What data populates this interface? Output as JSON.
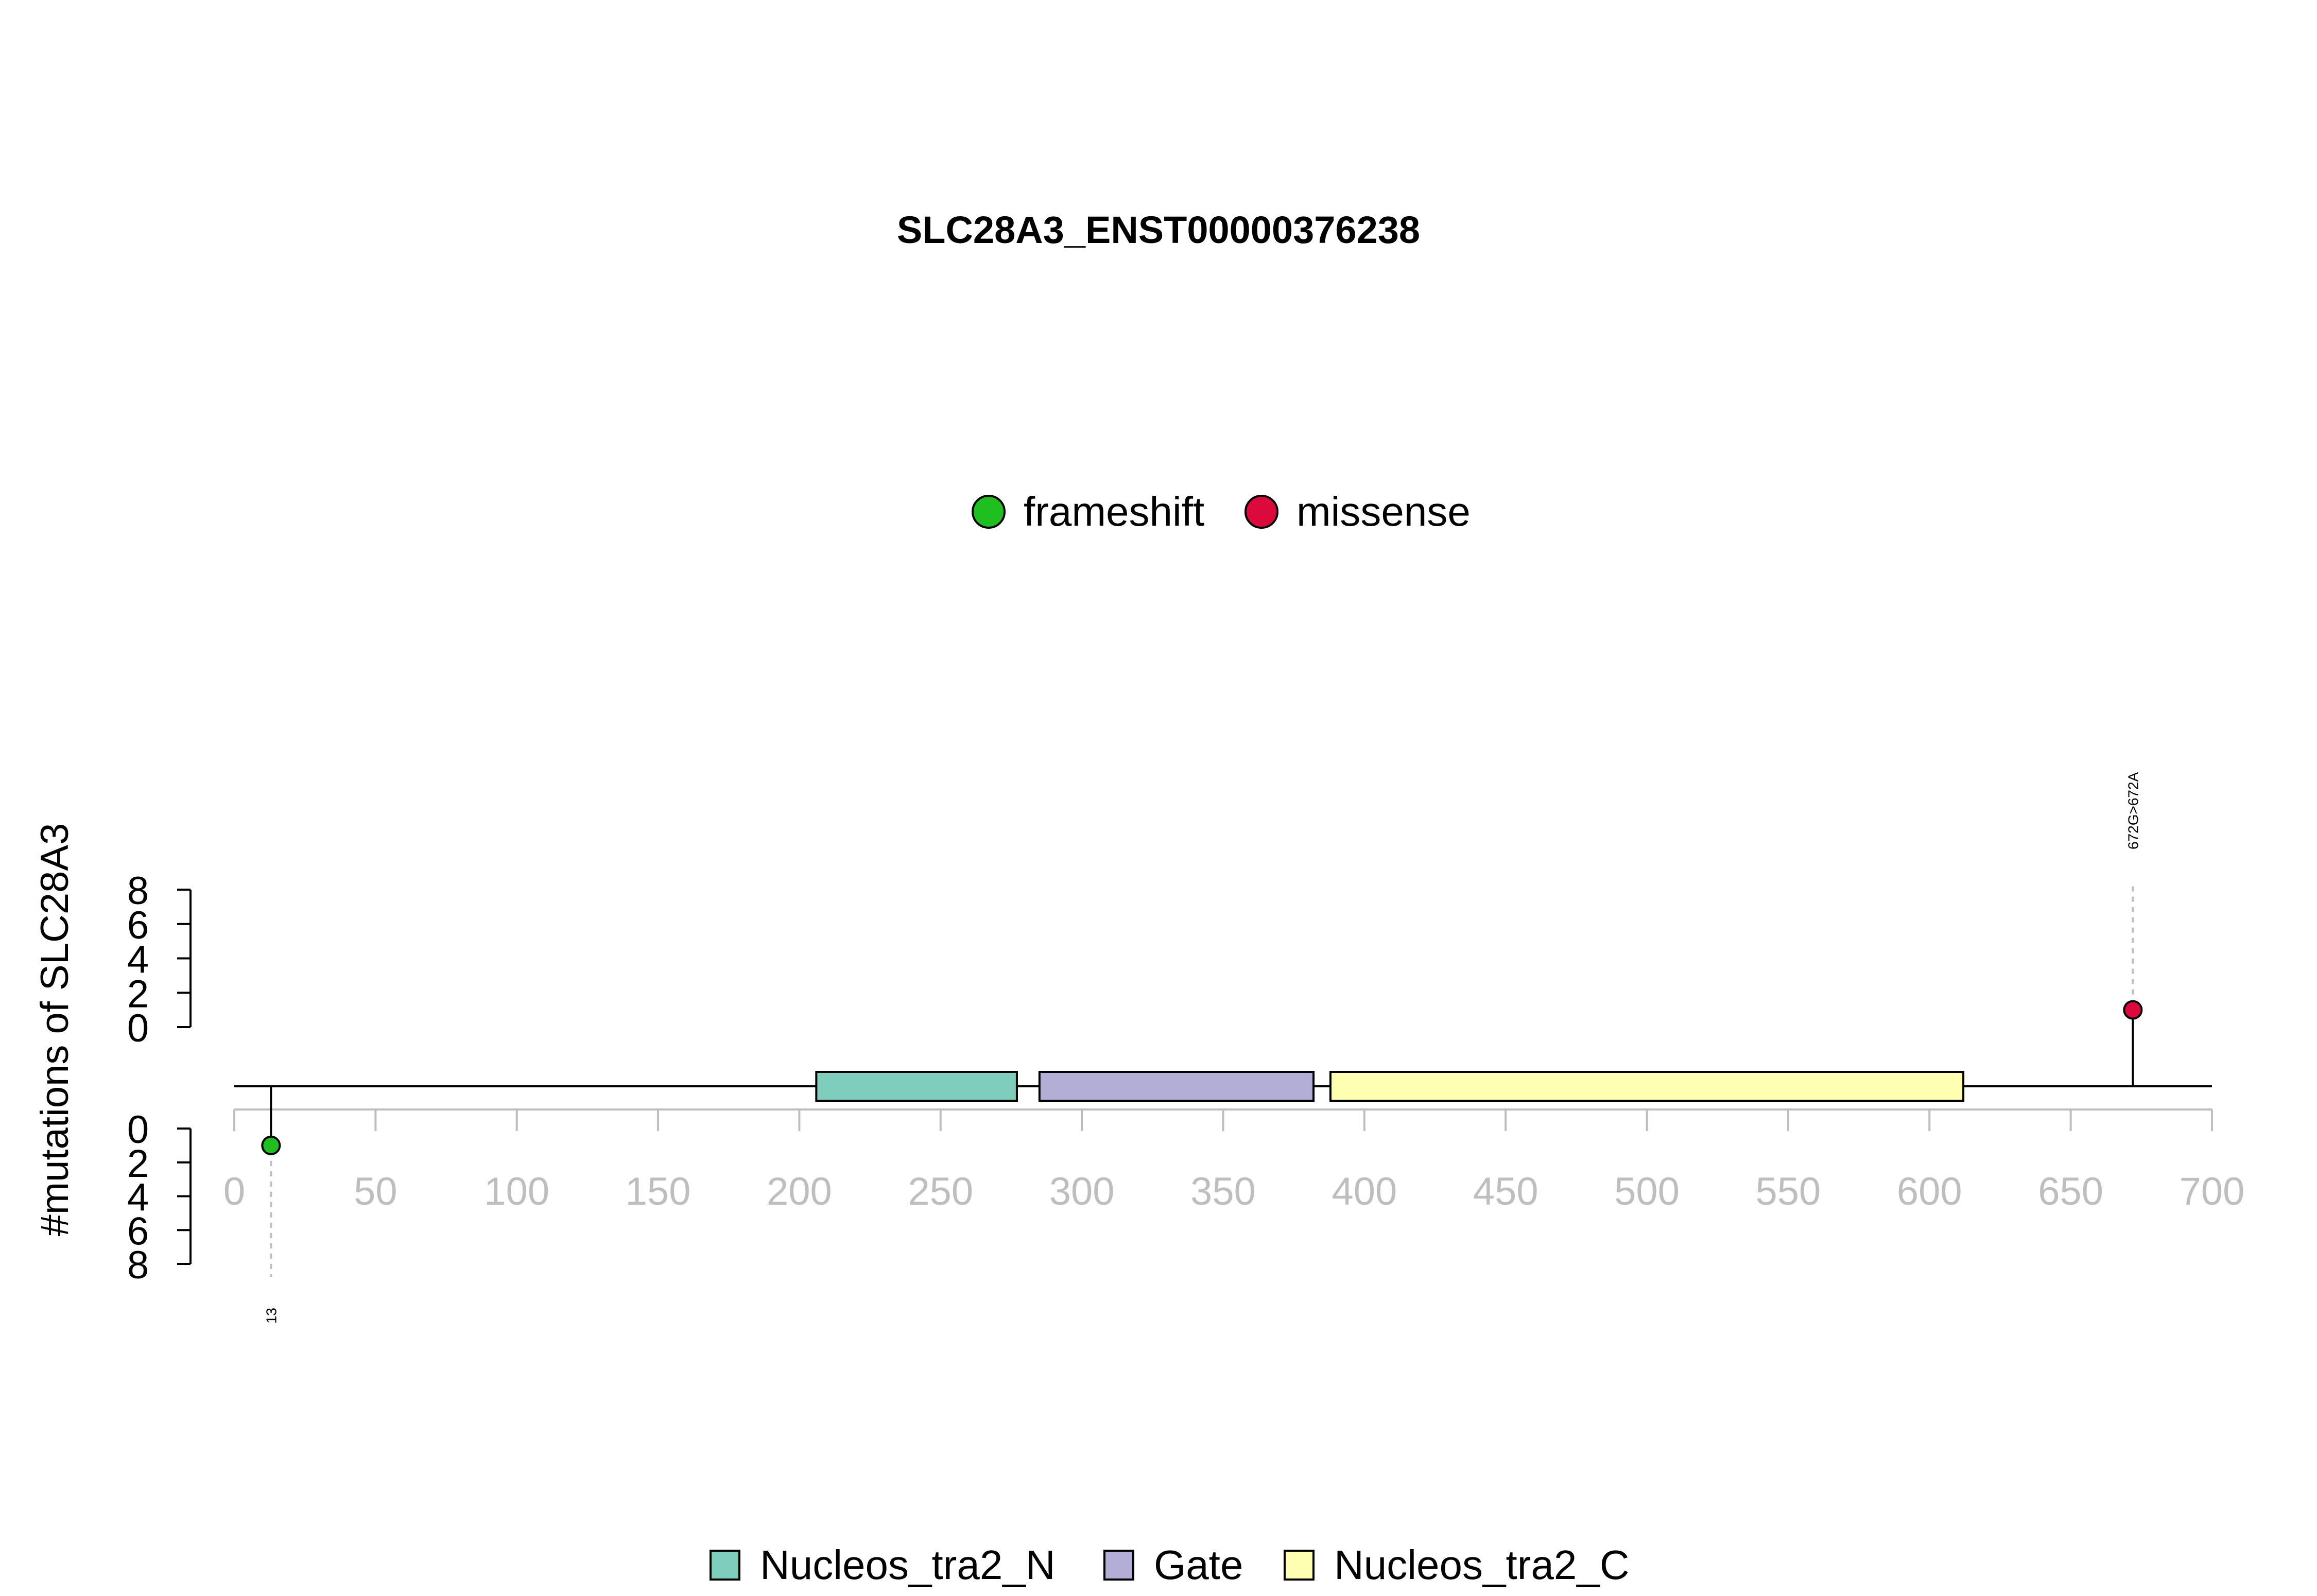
{
  "chart_data": {
    "type": "lollipop",
    "title": "SLC28A3_ENST00000376238",
    "ylabel": "#mutations of SLC28A3",
    "xlim": [
      0,
      700
    ],
    "x_ticks": [
      0,
      50,
      100,
      150,
      200,
      250,
      300,
      350,
      400,
      450,
      500,
      550,
      600,
      650,
      700
    ],
    "y_ticks": [
      0,
      2,
      4,
      6,
      8
    ],
    "ylim": [
      0,
      8
    ],
    "protein_length": 700,
    "mutation_legend": [
      {
        "name": "frameshift",
        "color": "#1fbf1f"
      },
      {
        "name": "missense",
        "color": "#dc0a3c"
      }
    ],
    "domain_legend": [
      {
        "name": "Nucleos_tra2_N",
        "color": "#7fcdbb"
      },
      {
        "name": "Gate",
        "color": "#b3aed6"
      },
      {
        "name": "Nucleos_tra2_C",
        "color": "#ffffb2"
      }
    ],
    "domains": [
      {
        "name": "Nucleos_tra2_N",
        "start": 206,
        "end": 277,
        "color": "#7fcdbb"
      },
      {
        "name": "Gate",
        "start": 285,
        "end": 382,
        "color": "#b3aed6"
      },
      {
        "name": "Nucleos_tra2_C",
        "start": 388,
        "end": 612,
        "color": "#ffffb2"
      }
    ],
    "mutations": [
      {
        "position": 672,
        "count": 1,
        "type": "missense",
        "side": "top",
        "label": "672G>672A",
        "color": "#dc0a3c"
      },
      {
        "position": 13,
        "count": 1,
        "type": "frameshift",
        "side": "bottom",
        "label": "13",
        "color": "#1fbf1f"
      }
    ]
  }
}
